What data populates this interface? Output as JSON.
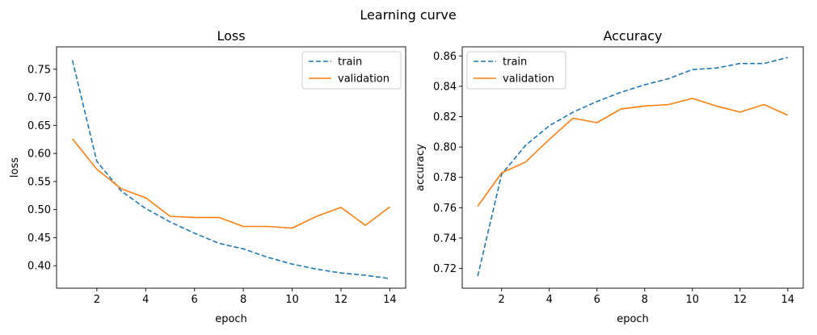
{
  "figure": {
    "suptitle": "Learning curve"
  },
  "chart_data": [
    {
      "type": "line",
      "title": "Loss",
      "xlabel": "epoch",
      "ylabel": "loss",
      "legend_loc": "upper right",
      "grid": false,
      "xlim": [
        0.35,
        14.65
      ],
      "ylim": [
        0.36,
        0.79
      ],
      "xticks": [
        2,
        4,
        6,
        8,
        10,
        12,
        14
      ],
      "yticks": [
        0.4,
        0.45,
        0.5,
        0.55,
        0.6,
        0.65,
        0.7,
        0.75
      ],
      "x": [
        1,
        2,
        3,
        4,
        5,
        6,
        7,
        8,
        9,
        10,
        11,
        12,
        13,
        14
      ],
      "series": [
        {
          "name": "train",
          "style": "dashed",
          "color": "#1f77b4",
          "values": [
            0.766,
            0.586,
            0.533,
            0.502,
            0.478,
            0.458,
            0.44,
            0.43,
            0.415,
            0.403,
            0.394,
            0.387,
            0.383,
            0.377
          ]
        },
        {
          "name": "validation",
          "style": "solid",
          "color": "#ff7f0e",
          "values": [
            0.626,
            0.572,
            0.537,
            0.521,
            0.488,
            0.486,
            0.486,
            0.47,
            0.47,
            0.467,
            0.488,
            0.504,
            0.472,
            0.505
          ]
        }
      ]
    },
    {
      "type": "line",
      "title": "Accuracy",
      "xlabel": "epoch",
      "ylabel": "accuracy",
      "legend_loc": "upper left",
      "grid": false,
      "xlim": [
        0.35,
        14.65
      ],
      "ylim": [
        0.707,
        0.866
      ],
      "xticks": [
        2,
        4,
        6,
        8,
        10,
        12,
        14
      ],
      "yticks": [
        0.72,
        0.74,
        0.76,
        0.78,
        0.8,
        0.82,
        0.84,
        0.86
      ],
      "x": [
        1,
        2,
        3,
        4,
        5,
        6,
        7,
        8,
        9,
        10,
        11,
        12,
        13,
        14
      ],
      "series": [
        {
          "name": "train",
          "style": "dashed",
          "color": "#1f77b4",
          "values": [
            0.715,
            0.782,
            0.801,
            0.814,
            0.823,
            0.83,
            0.836,
            0.841,
            0.845,
            0.851,
            0.852,
            0.855,
            0.855,
            0.859
          ]
        },
        {
          "name": "validation",
          "style": "solid",
          "color": "#ff7f0e",
          "values": [
            0.761,
            0.783,
            0.79,
            0.805,
            0.819,
            0.816,
            0.825,
            0.827,
            0.828,
            0.832,
            0.827,
            0.823,
            0.828,
            0.821
          ]
        }
      ]
    }
  ]
}
